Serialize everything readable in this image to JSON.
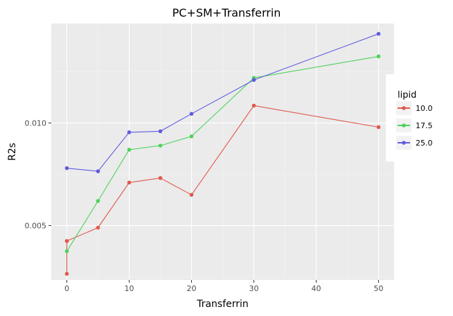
{
  "chart_data": {
    "type": "line",
    "title": "PC+SM+Transferrin",
    "xlabel": "Transferrin",
    "ylabel": "R2s",
    "xlim": [
      -2.5,
      52.5
    ],
    "ylim": [
      0.00235,
      0.01485
    ],
    "x_ticks": [
      0,
      10,
      20,
      30,
      40,
      50
    ],
    "x_tick_labels": [
      "0",
      "10",
      "20",
      "30",
      "40",
      "50"
    ],
    "y_ticks": [
      0.005,
      0.01
    ],
    "y_tick_labels": [
      "0.005",
      "0.010"
    ],
    "grid": true,
    "legend": {
      "title": "lipid",
      "position": "right"
    },
    "series": [
      {
        "name": "10.0",
        "color": "#e0584d",
        "points": [
          {
            "x": 0,
            "y": 0.00265
          },
          {
            "x": 0,
            "y": 0.00425
          },
          {
            "x": 5,
            "y": 0.0049
          },
          {
            "x": 10,
            "y": 0.0071
          },
          {
            "x": 15,
            "y": 0.00732
          },
          {
            "x": 20,
            "y": 0.0065
          },
          {
            "x": 30,
            "y": 0.01085
          },
          {
            "x": 50,
            "y": 0.0098
          }
        ]
      },
      {
        "name": "17.5",
        "color": "#4dd25b",
        "points": [
          {
            "x": 0,
            "y": 0.00375
          },
          {
            "x": 5,
            "y": 0.0062
          },
          {
            "x": 10,
            "y": 0.0087
          },
          {
            "x": 15,
            "y": 0.0089
          },
          {
            "x": 20,
            "y": 0.00935
          },
          {
            "x": 30,
            "y": 0.0122
          },
          {
            "x": 50,
            "y": 0.01325
          }
        ]
      },
      {
        "name": "25.0",
        "color": "#5f5be0",
        "points": [
          {
            "x": 0,
            "y": 0.0078
          },
          {
            "x": 5,
            "y": 0.00765
          },
          {
            "x": 10,
            "y": 0.00955
          },
          {
            "x": 15,
            "y": 0.0096
          },
          {
            "x": 20,
            "y": 0.01045
          },
          {
            "x": 30,
            "y": 0.0121
          },
          {
            "x": 50,
            "y": 0.01435
          }
        ]
      }
    ]
  }
}
